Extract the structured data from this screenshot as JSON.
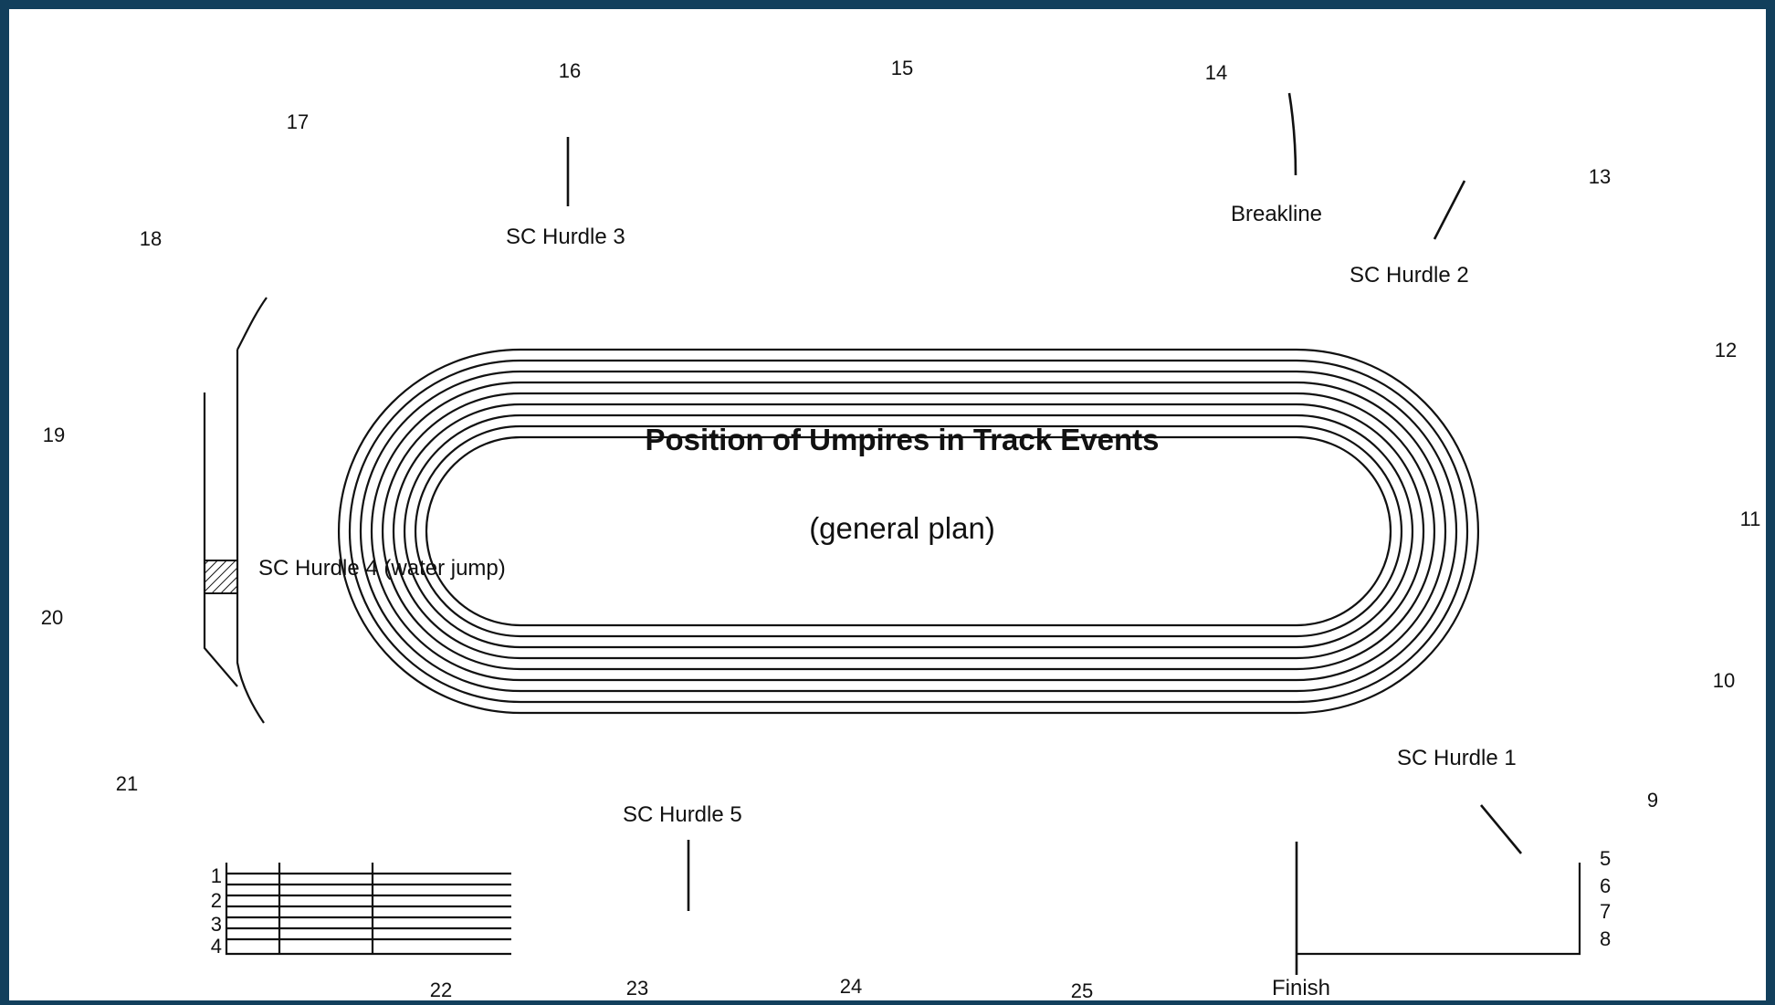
{
  "title": "Position of Umpires in Track Events",
  "subtitle": "(general plan)",
  "umpire_positions": [
    "9",
    "10",
    "11",
    "12",
    "13",
    "14",
    "15",
    "16",
    "17",
    "18",
    "19",
    "20",
    "21",
    "22",
    "23",
    "24",
    "25"
  ],
  "lanes_left": [
    "1",
    "2",
    "3",
    "4"
  ],
  "lanes_right": [
    "5",
    "6",
    "7",
    "8"
  ],
  "markers": {
    "breakline": "Breakline",
    "finish": "Finish",
    "sc_hurdle_1": "SC Hurdle 1",
    "sc_hurdle_2": "SC Hurdle 2",
    "sc_hurdle_3": "SC Hurdle 3",
    "sc_hurdle_4": "SC Hurdle 4 (water jump)",
    "sc_hurdle_5": "SC Hurdle 5"
  },
  "colors": {
    "frame": "#123f5c",
    "background": "#ffffff",
    "ink": "#111111"
  }
}
